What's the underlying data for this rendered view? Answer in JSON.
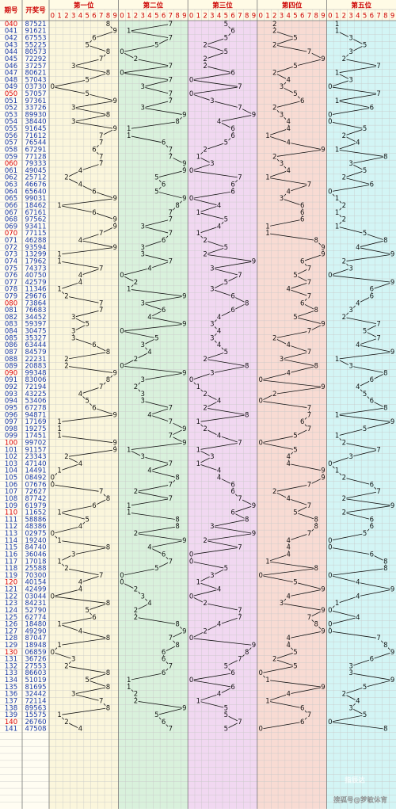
{
  "table": {
    "headers": {
      "issue": "期号",
      "draw": "开奖号",
      "positions": [
        "第一位",
        "第二位",
        "第三位",
        "第四位",
        "第五位"
      ],
      "digit_labels": [
        0,
        1,
        2,
        3,
        4,
        5,
        6,
        7,
        8,
        9
      ]
    },
    "rows": [
      {
        "issue": "040",
        "digits": [
          8,
          7,
          5,
          2,
          1
        ]
      },
      {
        "issue": "041",
        "digits": [
          9,
          1,
          6,
          2,
          1
        ]
      },
      {
        "issue": "042",
        "digits": [
          6,
          7,
          5,
          5,
          3
        ]
      },
      {
        "issue": "043",
        "digits": [
          5,
          5,
          2,
          2,
          5
        ]
      },
      {
        "issue": "044",
        "digits": [
          8,
          0,
          5,
          7,
          3
        ]
      },
      {
        "issue": "045",
        "digits": [
          7,
          2,
          2,
          9,
          2
        ]
      },
      {
        "issue": "046",
        "digits": [
          3,
          7,
          2,
          5,
          7
        ]
      },
      {
        "issue": "047",
        "digits": [
          8,
          0,
          6,
          2,
          1
        ]
      },
      {
        "issue": "048",
        "digits": [
          5,
          7,
          0,
          4,
          3
        ]
      },
      {
        "issue": "049",
        "digits": [
          0,
          3,
          7,
          3,
          0
        ]
      },
      {
        "issue": "050",
        "digits": [
          5,
          7,
          0,
          5,
          7
        ]
      },
      {
        "issue": "051",
        "digits": [
          9,
          7,
          3,
          6,
          1
        ]
      },
      {
        "issue": "052",
        "digits": [
          3,
          3,
          7,
          2,
          6
        ]
      },
      {
        "issue": "053",
        "digits": [
          8,
          9,
          9,
          3,
          0
        ]
      },
      {
        "issue": "054",
        "digits": [
          3,
          8,
          4,
          4,
          0
        ]
      },
      {
        "issue": "055",
        "digits": [
          9,
          1,
          6,
          4,
          5
        ]
      },
      {
        "issue": "056",
        "digits": [
          7,
          1,
          6,
          1,
          2
        ]
      },
      {
        "issue": "057",
        "digits": [
          7,
          6,
          5,
          4,
          4
        ]
      },
      {
        "issue": "058",
        "digits": [
          6,
          7,
          2,
          9,
          1
        ]
      },
      {
        "issue": "059",
        "digits": [
          7,
          7,
          1,
          2,
          8
        ]
      },
      {
        "issue": "060",
        "digits": [
          7,
          9,
          3,
          3,
          3
        ]
      },
      {
        "issue": "061",
        "digits": [
          4,
          9,
          0,
          4,
          5
        ]
      },
      {
        "issue": "062",
        "digits": [
          2,
          5,
          7,
          1,
          2
        ]
      },
      {
        "issue": "063",
        "digits": [
          4,
          6,
          6,
          7,
          6
        ]
      },
      {
        "issue": "064",
        "digits": [
          6,
          5,
          6,
          4,
          0
        ]
      },
      {
        "issue": "065",
        "digits": [
          9,
          9,
          0,
          3,
          1
        ]
      },
      {
        "issue": "066",
        "digits": [
          1,
          8,
          4,
          6,
          2
        ]
      },
      {
        "issue": "067",
        "digits": [
          6,
          7,
          1,
          6,
          1
        ]
      },
      {
        "issue": "068",
        "digits": [
          9,
          7,
          5,
          6,
          2
        ]
      },
      {
        "issue": "069",
        "digits": [
          9,
          3,
          4,
          1,
          1
        ]
      },
      {
        "issue": "070",
        "digits": [
          7,
          7,
          1,
          1,
          5
        ]
      },
      {
        "issue": "071",
        "digits": [
          4,
          6,
          2,
          8,
          8
        ]
      },
      {
        "issue": "072",
        "digits": [
          9,
          3,
          5,
          9,
          4
        ]
      },
      {
        "issue": "073",
        "digits": [
          1,
          3,
          2,
          9,
          9
        ]
      },
      {
        "issue": "074",
        "digits": [
          1,
          7,
          9,
          6,
          2
        ]
      },
      {
        "issue": "075",
        "digits": [
          7,
          4,
          3,
          7,
          3
        ]
      },
      {
        "issue": "076",
        "digits": [
          4,
          0,
          7,
          5,
          0
        ]
      },
      {
        "issue": "077",
        "digits": [
          4,
          2,
          5,
          7,
          9
        ]
      },
      {
        "issue": "078",
        "digits": [
          1,
          1,
          3,
          4,
          6
        ]
      },
      {
        "issue": "079",
        "digits": [
          2,
          9,
          6,
          7,
          6
        ]
      },
      {
        "issue": "080",
        "digits": [
          7,
          3,
          8,
          6,
          4
        ]
      },
      {
        "issue": "081",
        "digits": [
          7,
          6,
          6,
          8,
          3
        ]
      },
      {
        "issue": "082",
        "digits": [
          3,
          4,
          4,
          5,
          2
        ]
      },
      {
        "issue": "083",
        "digits": [
          5,
          9,
          3,
          9,
          7
        ]
      },
      {
        "issue": "084",
        "digits": [
          3,
          0,
          4,
          7,
          5
        ]
      },
      {
        "issue": "085",
        "digits": [
          3,
          5,
          3,
          2,
          7
        ]
      },
      {
        "issue": "086",
        "digits": [
          6,
          3,
          4,
          4,
          4
        ]
      },
      {
        "issue": "087",
        "digits": [
          8,
          4,
          5,
          7,
          9
        ]
      },
      {
        "issue": "088",
        "digits": [
          2,
          2,
          2,
          3,
          1
        ]
      },
      {
        "issue": "089",
        "digits": [
          2,
          0,
          8,
          8,
          3
        ]
      },
      {
        "issue": "090",
        "digits": [
          9,
          9,
          3,
          4,
          8
        ]
      },
      {
        "issue": "091",
        "digits": [
          8,
          3,
          0,
          0,
          6
        ]
      },
      {
        "issue": "092",
        "digits": [
          7,
          2,
          1,
          9,
          4
        ]
      },
      {
        "issue": "093",
        "digits": [
          4,
          3,
          2,
          2,
          5
        ]
      },
      {
        "issue": "094",
        "digits": [
          5,
          3,
          4,
          0,
          6
        ]
      },
      {
        "issue": "095",
        "digits": [
          6,
          7,
          2,
          7,
          8
        ]
      },
      {
        "issue": "096",
        "digits": [
          9,
          4,
          8,
          7,
          1
        ]
      },
      {
        "issue": "097",
        "digits": [
          1,
          7,
          1,
          6,
          9
        ]
      },
      {
        "issue": "098",
        "digits": [
          1,
          9,
          2,
          7,
          5
        ]
      },
      {
        "issue": "099",
        "digits": [
          1,
          7,
          4,
          5,
          1
        ]
      },
      {
        "issue": "100",
        "digits": [
          9,
          9,
          7,
          0,
          2
        ]
      },
      {
        "issue": "101",
        "digits": [
          9,
          1,
          1,
          5,
          7
        ]
      },
      {
        "issue": "102",
        "digits": [
          2,
          3,
          3,
          4,
          3
        ]
      },
      {
        "issue": "103",
        "digits": [
          4,
          7,
          1,
          4,
          0
        ]
      },
      {
        "issue": "104",
        "digits": [
          1,
          4,
          4,
          9,
          1
        ]
      },
      {
        "issue": "105",
        "digits": [
          0,
          8,
          4,
          9,
          2
        ]
      },
      {
        "issue": "106",
        "digits": [
          0,
          7,
          6,
          7,
          6
        ]
      },
      {
        "issue": "107",
        "digits": [
          7,
          2,
          6,
          2,
          7
        ]
      },
      {
        "issue": "108",
        "digits": [
          8,
          7,
          7,
          4,
          2
        ]
      },
      {
        "issue": "109",
        "digits": [
          6,
          1,
          9,
          7,
          9
        ]
      },
      {
        "issue": "110",
        "digits": [
          1,
          1,
          6,
          5,
          2
        ]
      },
      {
        "issue": "111",
        "digits": [
          5,
          8,
          8,
          8,
          6
        ]
      },
      {
        "issue": "112",
        "digits": [
          4,
          8,
          3,
          8,
          6
        ]
      },
      {
        "issue": "113",
        "digits": [
          0,
          2,
          9,
          7,
          5
        ]
      },
      {
        "issue": "114",
        "digits": [
          1,
          9,
          2,
          4,
          0
        ]
      },
      {
        "issue": "115",
        "digits": [
          8,
          4,
          7,
          4,
          0
        ]
      },
      {
        "issue": "116",
        "digits": [
          3,
          6,
          0,
          4,
          6
        ]
      },
      {
        "issue": "117",
        "digits": [
          1,
          7,
          0,
          1,
          8
        ]
      },
      {
        "issue": "118",
        "digits": [
          2,
          5,
          5,
          8,
          8
        ]
      },
      {
        "issue": "119",
        "digits": [
          7,
          0,
          3,
          0,
          0
        ]
      },
      {
        "issue": "120",
        "digits": [
          4,
          0,
          1,
          5,
          4
        ]
      },
      {
        "issue": "121",
        "digits": [
          4,
          2,
          4,
          9,
          9
        ]
      },
      {
        "issue": "122",
        "digits": [
          0,
          3,
          0,
          4,
          4
        ]
      },
      {
        "issue": "123",
        "digits": [
          8,
          4,
          2,
          3,
          1
        ]
      },
      {
        "issue": "124",
        "digits": [
          5,
          2,
          7,
          9,
          0
        ]
      },
      {
        "issue": "125",
        "digits": [
          6,
          2,
          7,
          7,
          4
        ]
      },
      {
        "issue": "126",
        "digits": [
          1,
          8,
          4,
          8,
          0
        ]
      },
      {
        "issue": "127",
        "digits": [
          4,
          9,
          2,
          9,
          0
        ]
      },
      {
        "issue": "128",
        "digits": [
          8,
          7,
          0,
          4,
          7
        ]
      },
      {
        "issue": "129",
        "digits": [
          1,
          8,
          9,
          4,
          8
        ]
      },
      {
        "issue": "130",
        "digits": [
          0,
          6,
          8,
          5,
          9
        ]
      },
      {
        "issue": "131",
        "digits": [
          3,
          6,
          7,
          2,
          6
        ]
      },
      {
        "issue": "132",
        "digits": [
          2,
          7,
          5,
          5,
          3
        ]
      },
      {
        "issue": "133",
        "digits": [
          8,
          6,
          6,
          0,
          3
        ]
      },
      {
        "issue": "134",
        "digits": [
          5,
          1,
          0,
          1,
          9
        ]
      },
      {
        "issue": "135",
        "digits": [
          8,
          1,
          6,
          9,
          5
        ]
      },
      {
        "issue": "136",
        "digits": [
          3,
          2,
          4,
          4,
          2
        ]
      },
      {
        "issue": "137",
        "digits": [
          7,
          2,
          1,
          1,
          4
        ]
      },
      {
        "issue": "138",
        "digits": [
          8,
          9,
          5,
          6,
          3
        ]
      },
      {
        "issue": "139",
        "digits": [
          1,
          5,
          5,
          7,
          5
        ]
      },
      {
        "issue": "140",
        "digits": [
          2,
          6,
          7,
          6,
          0
        ]
      },
      {
        "issue": "141",
        "digits": [
          4,
          7,
          5,
          0,
          8
        ]
      }
    ]
  },
  "watermark": {
    "brand": "指辰达",
    "source": "搜狐号@梦敏体育"
  }
}
